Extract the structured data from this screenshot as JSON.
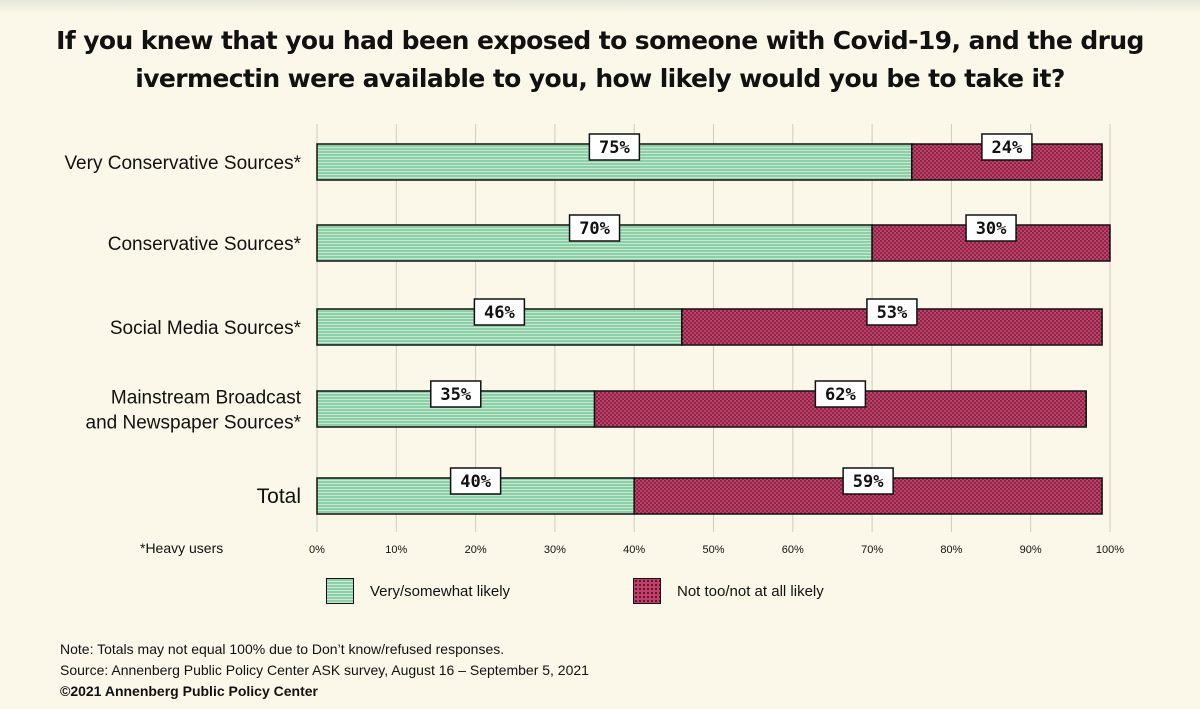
{
  "title": "If you knew that you had been exposed to someone with Covid-19, and the drug ivermectin were available to you, how likely would you be to take it?",
  "chart_data": {
    "type": "bar",
    "orientation": "horizontal",
    "stacked": true,
    "categories": [
      "Very Conservative Sources*",
      "Conservative Sources*",
      "Social Media Sources*",
      "Mainstream Broadcast and Newspaper Sources*",
      "Total"
    ],
    "category_lines": [
      [
        "Very Conservative Sources*"
      ],
      [
        "Conservative Sources*"
      ],
      [
        "Social Media Sources*"
      ],
      [
        "Mainstream Broadcast",
        "and Newspaper Sources*"
      ],
      [
        "Total"
      ]
    ],
    "series": [
      {
        "name": "Very/somewhat likely",
        "values": [
          75,
          70,
          46,
          35,
          40
        ],
        "labels": [
          "75%",
          "70%",
          "46%",
          "35%",
          "40%"
        ],
        "color": "#8dcfa6"
      },
      {
        "name": "Not too/not at all likely",
        "values": [
          24,
          30,
          53,
          62,
          59
        ],
        "labels": [
          "24%",
          "30%",
          "53%",
          "62%",
          "59%"
        ],
        "color": "#c33f6a"
      }
    ],
    "xlim": [
      0,
      100
    ],
    "xticks": [
      "0%",
      "10%",
      "20%",
      "30%",
      "40%",
      "50%",
      "60%",
      "70%",
      "80%",
      "90%",
      "100%"
    ],
    "grid": true
  },
  "footnote": "*Heavy users",
  "legend": {
    "likely": "Very/somewhat likely",
    "unlikely": "Not too/not at all likely"
  },
  "notes": {
    "note": "Note: Totals may not equal 100% due to Don’t know/refused responses.",
    "source": "Source: Annenberg Public Policy Center ASK survey, August 16 – September 5, 2021",
    "copyright": "©2021 Annenberg Public Policy Center"
  }
}
